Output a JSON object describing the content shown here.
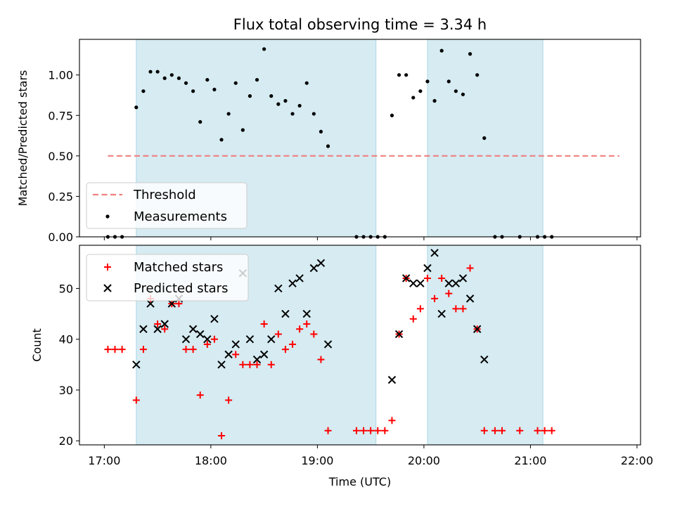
{
  "chart_data": [
    {
      "type": "scatter",
      "title": "Flux total observing time = 3.34 h",
      "xlabel": "",
      "ylabel": "Matched/Predicted stars",
      "xlim": [
        "16:46",
        "22:02"
      ],
      "ylim": [
        0,
        1.22
      ],
      "yticks": [
        "0.00",
        "0.25",
        "0.50",
        "0.75",
        "1.00"
      ],
      "xticks": [
        "17:00",
        "18:00",
        "19:00",
        "20:00",
        "21:00",
        "22:00"
      ],
      "xtick_labels_shown": false,
      "legend": {
        "position": "lower-left",
        "entries": [
          "Threshold",
          "Measurements"
        ]
      },
      "shaded_spans": [
        {
          "start": "17:18",
          "end": "19:33"
        },
        {
          "start": "20:02",
          "end": "21:07"
        }
      ],
      "threshold": {
        "name": "Threshold",
        "y": 0.5,
        "x_start": "17:02",
        "x_end": "21:50",
        "color": "#f08080"
      },
      "series": [
        {
          "name": "Measurements",
          "color": "#000000",
          "points": [
            [
              "17:02",
              0.0
            ],
            [
              "17:06",
              0.0
            ],
            [
              "17:10",
              0.0
            ],
            [
              "17:18",
              0.8
            ],
            [
              "17:22",
              0.9
            ],
            [
              "17:26",
              1.02
            ],
            [
              "17:30",
              1.02
            ],
            [
              "17:34",
              0.98
            ],
            [
              "17:38",
              1.0
            ],
            [
              "17:42",
              0.98
            ],
            [
              "17:46",
              0.95
            ],
            [
              "17:50",
              0.9
            ],
            [
              "17:54",
              0.71
            ],
            [
              "17:58",
              0.97
            ],
            [
              "18:02",
              0.91
            ],
            [
              "18:06",
              0.6
            ],
            [
              "18:10",
              0.76
            ],
            [
              "18:14",
              0.95
            ],
            [
              "18:18",
              0.66
            ],
            [
              "18:22",
              0.87
            ],
            [
              "18:26",
              0.97
            ],
            [
              "18:30",
              1.16
            ],
            [
              "18:34",
              0.87
            ],
            [
              "18:38",
              0.82
            ],
            [
              "18:42",
              0.84
            ],
            [
              "18:46",
              0.76
            ],
            [
              "18:50",
              0.81
            ],
            [
              "18:54",
              0.95
            ],
            [
              "18:58",
              0.76
            ],
            [
              "19:02",
              0.65
            ],
            [
              "19:06",
              0.56
            ],
            [
              "19:22",
              0.0
            ],
            [
              "19:26",
              0.0
            ],
            [
              "19:30",
              0.0
            ],
            [
              "19:34",
              0.0
            ],
            [
              "19:38",
              0.0
            ],
            [
              "19:42",
              0.75
            ],
            [
              "19:46",
              1.0
            ],
            [
              "19:50",
              1.0
            ],
            [
              "19:54",
              0.86
            ],
            [
              "19:58",
              0.9
            ],
            [
              "20:02",
              0.96
            ],
            [
              "20:06",
              0.84
            ],
            [
              "20:10",
              1.15
            ],
            [
              "20:14",
              0.96
            ],
            [
              "20:18",
              0.9
            ],
            [
              "20:22",
              0.88
            ],
            [
              "20:26",
              1.13
            ],
            [
              "20:30",
              1.0
            ],
            [
              "20:34",
              0.61
            ],
            [
              "20:40",
              0.0
            ],
            [
              "20:44",
              0.0
            ],
            [
              "20:54",
              0.0
            ],
            [
              "21:04",
              0.0
            ],
            [
              "21:08",
              0.0
            ],
            [
              "21:12",
              0.0
            ]
          ]
        }
      ]
    },
    {
      "type": "scatter",
      "title": "",
      "xlabel": "Time (UTC)",
      "ylabel": "Count",
      "xlim": [
        "16:46",
        "22:02"
      ],
      "ylim": [
        19.2,
        58.5
      ],
      "yticks": [
        "20",
        "30",
        "40",
        "50"
      ],
      "xticks": [
        "17:00",
        "18:00",
        "19:00",
        "20:00",
        "21:00",
        "22:00"
      ],
      "legend": {
        "position": "upper-left",
        "entries": [
          "Matched stars",
          "Predicted stars"
        ]
      },
      "shaded_spans": [
        {
          "start": "17:18",
          "end": "19:33"
        },
        {
          "start": "20:02",
          "end": "21:07"
        }
      ],
      "series": [
        {
          "name": "Matched stars",
          "marker": "plus",
          "color": "#ff0000",
          "points": [
            [
              "17:02",
              38
            ],
            [
              "17:06",
              38
            ],
            [
              "17:10",
              38
            ],
            [
              "17:18",
              28
            ],
            [
              "17:22",
              38
            ],
            [
              "17:26",
              48
            ],
            [
              "17:30",
              43
            ],
            [
              "17:34",
              42
            ],
            [
              "17:38",
              47
            ],
            [
              "17:42",
              47
            ],
            [
              "17:46",
              38
            ],
            [
              "17:50",
              38
            ],
            [
              "17:54",
              29
            ],
            [
              "17:58",
              39
            ],
            [
              "18:02",
              40
            ],
            [
              "18:06",
              21
            ],
            [
              "18:10",
              28
            ],
            [
              "18:14",
              37
            ],
            [
              "18:18",
              35
            ],
            [
              "18:22",
              35
            ],
            [
              "18:26",
              35
            ],
            [
              "18:30",
              43
            ],
            [
              "18:34",
              35
            ],
            [
              "18:38",
              41
            ],
            [
              "18:42",
              38
            ],
            [
              "18:46",
              39
            ],
            [
              "18:50",
              42
            ],
            [
              "18:54",
              43
            ],
            [
              "18:58",
              41
            ],
            [
              "19:02",
              36
            ],
            [
              "19:06",
              22
            ],
            [
              "19:22",
              22
            ],
            [
              "19:26",
              22
            ],
            [
              "19:30",
              22
            ],
            [
              "19:34",
              22
            ],
            [
              "19:38",
              22
            ],
            [
              "19:42",
              24
            ],
            [
              "19:46",
              41
            ],
            [
              "19:50",
              52
            ],
            [
              "19:54",
              44
            ],
            [
              "19:58",
              46
            ],
            [
              "20:02",
              52
            ],
            [
              "20:06",
              48
            ],
            [
              "20:10",
              52
            ],
            [
              "20:14",
              49
            ],
            [
              "20:18",
              46
            ],
            [
              "20:22",
              46
            ],
            [
              "20:26",
              54
            ],
            [
              "20:30",
              42
            ],
            [
              "20:34",
              22
            ],
            [
              "20:40",
              22
            ],
            [
              "20:44",
              22
            ],
            [
              "20:54",
              22
            ],
            [
              "21:04",
              22
            ],
            [
              "21:08",
              22
            ],
            [
              "21:12",
              22
            ]
          ]
        },
        {
          "name": "Predicted stars",
          "marker": "x",
          "color": "#000000",
          "points": [
            [
              "17:18",
              35
            ],
            [
              "17:22",
              42
            ],
            [
              "17:26",
              47
            ],
            [
              "17:30",
              42
            ],
            [
              "17:34",
              43
            ],
            [
              "17:38",
              47
            ],
            [
              "17:42",
              48
            ],
            [
              "17:46",
              40
            ],
            [
              "17:50",
              42
            ],
            [
              "17:54",
              41
            ],
            [
              "17:58",
              40
            ],
            [
              "18:02",
              44
            ],
            [
              "18:06",
              35
            ],
            [
              "18:10",
              37
            ],
            [
              "18:14",
              39
            ],
            [
              "18:18",
              53
            ],
            [
              "18:22",
              40
            ],
            [
              "18:26",
              36
            ],
            [
              "18:30",
              37
            ],
            [
              "18:34",
              40
            ],
            [
              "18:38",
              50
            ],
            [
              "18:42",
              45
            ],
            [
              "18:46",
              51
            ],
            [
              "18:50",
              52
            ],
            [
              "18:54",
              45
            ],
            [
              "18:58",
              54
            ],
            [
              "19:02",
              55
            ],
            [
              "19:06",
              39
            ],
            [
              "19:42",
              32
            ],
            [
              "19:46",
              41
            ],
            [
              "19:50",
              52
            ],
            [
              "19:54",
              51
            ],
            [
              "19:58",
              51
            ],
            [
              "20:02",
              54
            ],
            [
              "20:06",
              57
            ],
            [
              "20:10",
              45
            ],
            [
              "20:14",
              51
            ],
            [
              "20:18",
              51
            ],
            [
              "20:22",
              52
            ],
            [
              "20:26",
              48
            ],
            [
              "20:30",
              42
            ],
            [
              "20:34",
              36
            ]
          ]
        }
      ]
    }
  ]
}
